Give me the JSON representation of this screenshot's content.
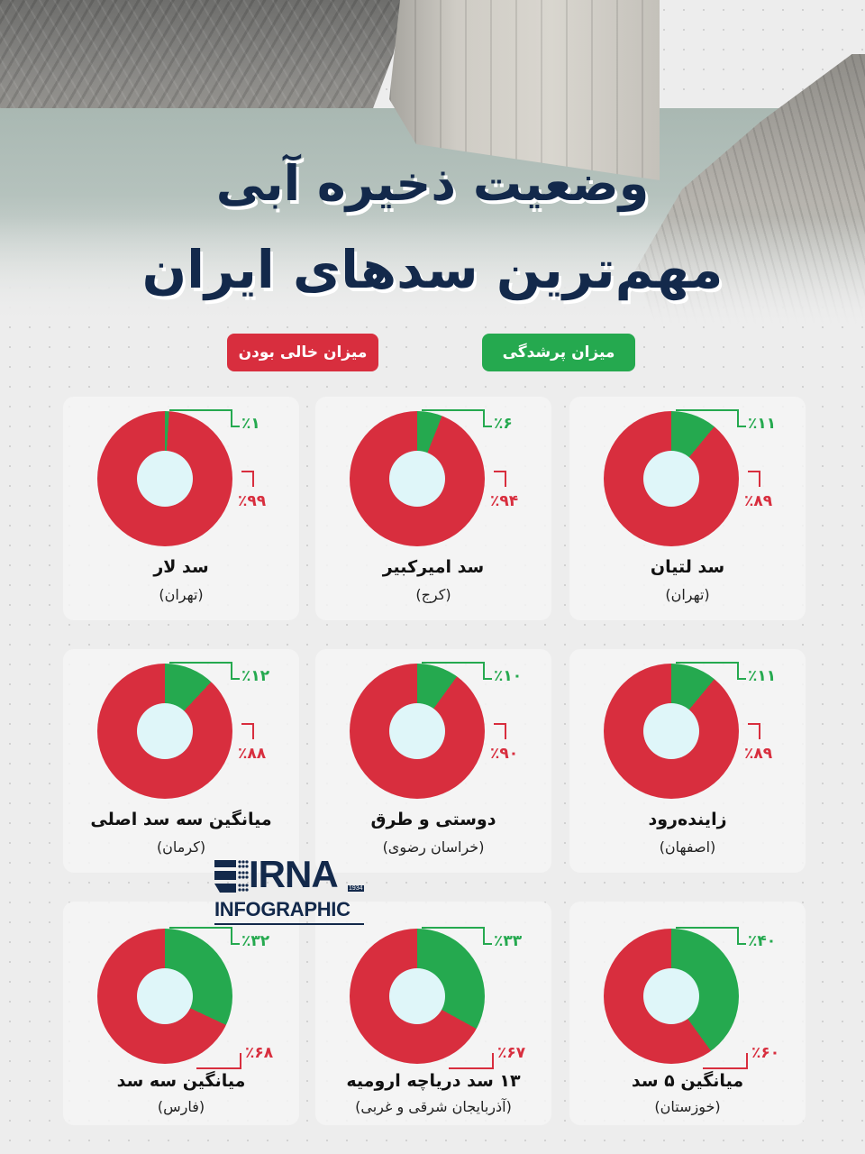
{
  "header": {
    "title_line1": "وضعیت ذخیره آبی",
    "title_line2": "مهم‌ترین سدهای ایران"
  },
  "legend": {
    "full_label": "میزان پرشدگی",
    "empty_label": "میزان خالی بودن",
    "full_color": "#25a94f",
    "empty_color": "#d82e3e"
  },
  "dams": [
    {
      "name": "سد لتیان",
      "region": "(تهران)",
      "full_pct": "٪۱۱",
      "empty_pct": "٪۸۹"
    },
    {
      "name": "سد امیرکبیر",
      "region": "(کرج)",
      "full_pct": "٪۶",
      "empty_pct": "٪۹۴"
    },
    {
      "name": "سد لار",
      "region": "(تهران)",
      "full_pct": "٪۱",
      "empty_pct": "٪۹۹"
    },
    {
      "name": "زاینده‌رود",
      "region": "(اصفهان)",
      "full_pct": "٪۱۱",
      "empty_pct": "٪۸۹"
    },
    {
      "name": "دوستی و طرق",
      "region": "(خراسان رضوی)",
      "full_pct": "٪۱۰",
      "empty_pct": "٪۹۰"
    },
    {
      "name": "میانگین سه سد اصلی",
      "region": "(کرمان)",
      "full_pct": "٪۱۲",
      "empty_pct": "٪۸۸"
    },
    {
      "name": "میانگین ۵ سد",
      "region": "(خوزستان)",
      "full_pct": "٪۴۰",
      "empty_pct": "٪۶۰"
    },
    {
      "name": "۱۳ سد دریاچه ارومیه",
      "region": "(آذربایجان شرقی و غربی)",
      "full_pct": "٪۳۳",
      "empty_pct": "٪۶۷"
    },
    {
      "name": "میانگین سه سد",
      "region": "(فارس)",
      "full_pct": "٪۳۲",
      "empty_pct": "٪۶۸"
    }
  ],
  "logo": {
    "brand": "IRNA",
    "year": "1934",
    "subtitle": "INFOGRAPHIC"
  },
  "chart_data": {
    "type": "pie",
    "title": "وضعیت ذخیره آبی مهم‌ترین سدهای ایران",
    "legend": [
      "میزان پرشدگی",
      "میزان خالی بودن"
    ],
    "categories": [
      "سد لتیان (تهران)",
      "سد امیرکبیر (کرج)",
      "سد لار (تهران)",
      "زاینده‌رود (اصفهان)",
      "دوستی و طرق (خراسان رضوی)",
      "میانگین سه سد اصلی (کرمان)",
      "میانگین ۵ سد (خوزستان)",
      "۱۳ سد دریاچه ارومیه (آذربایجان شرقی و غربی)",
      "میانگین سه سد (فارس)"
    ],
    "series": [
      {
        "name": "میزان پرشدگی",
        "values": [
          11,
          6,
          1,
          11,
          10,
          12,
          40,
          33,
          32
        ]
      },
      {
        "name": "میزان خالی بودن",
        "values": [
          89,
          94,
          99,
          89,
          90,
          88,
          60,
          67,
          68
        ]
      }
    ],
    "unit": "%"
  }
}
